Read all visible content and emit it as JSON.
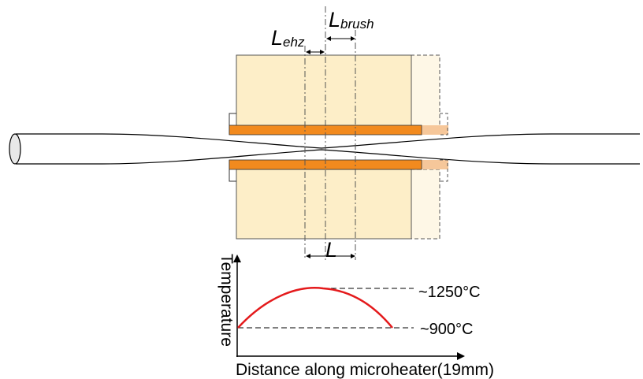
{
  "diagram": {
    "label_lehz": {
      "main": "L",
      "sub": "ehz"
    },
    "label_lbrush": {
      "main": "L",
      "sub": "brush"
    },
    "label_l": "L",
    "temp_axis_label": "Temperature",
    "distance_axis_label": "Distance along microheater(19mm)",
    "peak_temp": "~1250°C",
    "base_temp": "~900°C"
  },
  "colors": {
    "heater_block": "#fdeec8",
    "heater_block_ghost": "#fef7e6",
    "heater_strip": "#f28a1e",
    "heater_strip_ghost": "#f6c79a",
    "temperature_curve": "#e41a1c"
  }
}
